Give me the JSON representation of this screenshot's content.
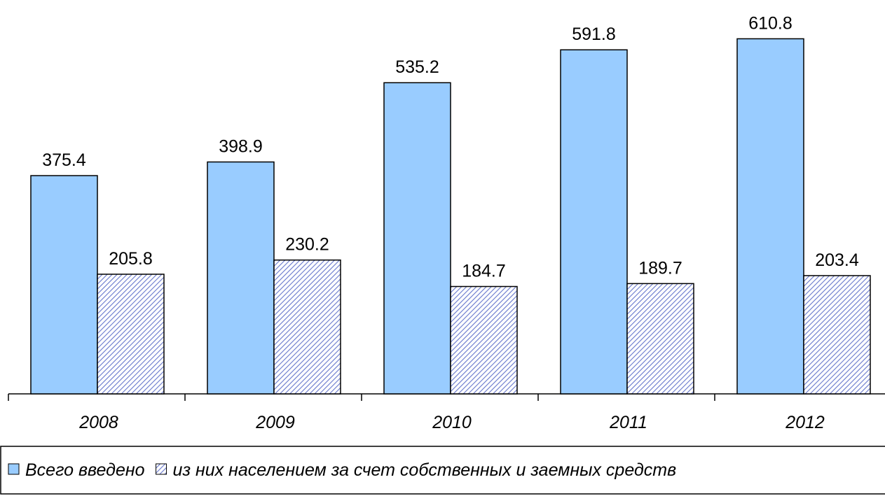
{
  "chart_data": {
    "type": "bar",
    "categories": [
      "2008",
      "2009",
      "2010",
      "2011",
      "2012"
    ],
    "series": [
      {
        "name": "Всего введено",
        "color": "#99ccff",
        "pattern": "solid",
        "values": [
          375.4,
          398.9,
          535.2,
          591.8,
          610.8
        ]
      },
      {
        "name": "из них населением за счет собственных и заемных средств",
        "color": "#6677cc",
        "pattern": "hatch",
        "values": [
          205.8,
          230.2,
          184.7,
          189.7,
          203.4
        ]
      }
    ],
    "legend": "bottom"
  }
}
